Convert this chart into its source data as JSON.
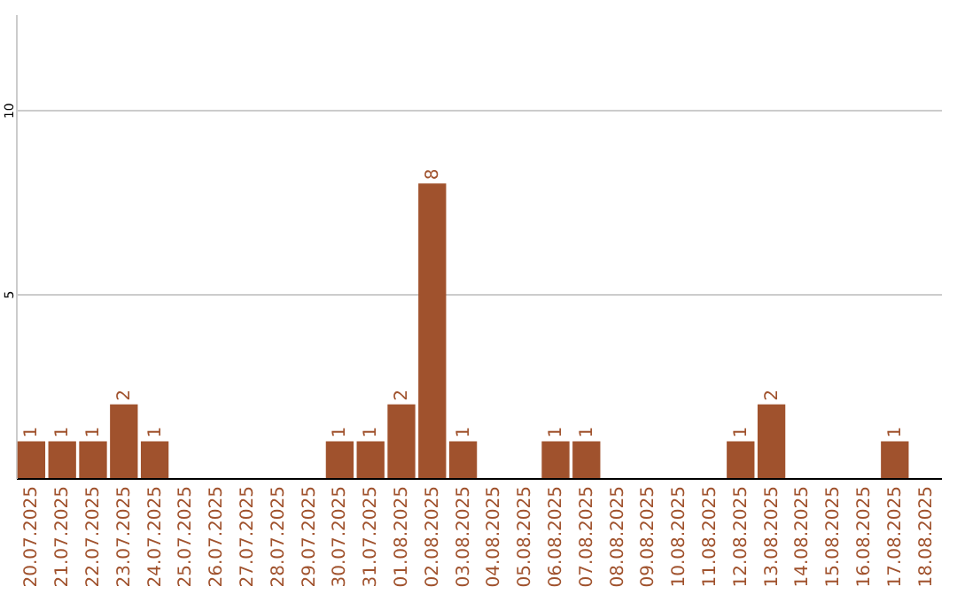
{
  "chart_data": {
    "type": "bar",
    "categories": [
      "20.07.2025",
      "21.07.2025",
      "22.07.2025",
      "23.07.2025",
      "24.07.2025",
      "25.07.2025",
      "26.07.2025",
      "27.07.2025",
      "28.07.2025",
      "29.07.2025",
      "30.07.2025",
      "31.07.2025",
      "01.08.2025",
      "02.08.2025",
      "03.08.2025",
      "04.08.2025",
      "05.08.2025",
      "06.08.2025",
      "07.08.2025",
      "08.08.2025",
      "09.08.2025",
      "10.08.2025",
      "11.08.2025",
      "12.08.2025",
      "13.08.2025",
      "14.08.2025",
      "15.08.2025",
      "16.08.2025",
      "17.08.2025",
      "18.08.2025"
    ],
    "values": [
      1,
      1,
      1,
      2,
      1,
      0,
      0,
      0,
      0,
      0,
      1,
      1,
      2,
      8,
      1,
      0,
      0,
      1,
      1,
      0,
      0,
      0,
      0,
      1,
      2,
      0,
      0,
      0,
      1,
      0
    ],
    "value_labels": [
      "1",
      "1",
      "1",
      "2",
      "1",
      null,
      null,
      null,
      null,
      null,
      "1",
      "1",
      "2",
      "8",
      "1",
      null,
      null,
      "1",
      "1",
      null,
      null,
      null,
      null,
      "1",
      "2",
      null,
      null,
      null,
      "1",
      null
    ],
    "color": "#a0522d",
    "ylim": [
      0,
      12.6
    ],
    "yticks": [
      5,
      10
    ],
    "grid": "y"
  }
}
